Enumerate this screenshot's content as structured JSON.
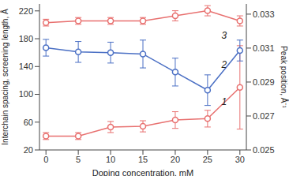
{
  "chart_data": {
    "type": "line",
    "x_label": "Doping concentration, mM",
    "y_label": "Interchain spacing, screening length, Å",
    "y2_label": "Peak position, Å⁻¹",
    "x": [
      0,
      5,
      10,
      15,
      20,
      25,
      30
    ],
    "xlim": [
      -1,
      31
    ],
    "xticks": [
      0,
      5,
      10,
      15,
      20,
      25,
      30
    ],
    "ylim": [
      20,
      230
    ],
    "yticks": [
      20,
      60,
      100,
      140,
      180,
      220
    ],
    "y2lim": [
      0.025,
      0.0336
    ],
    "y2ticks": [
      0.025,
      0.027,
      0.029,
      0.031,
      0.033
    ],
    "grid": false,
    "series": [
      {
        "name": "1",
        "color": "#e8706f",
        "marker": "circle",
        "values": [
          40,
          40,
          53,
          54,
          63,
          65,
          110
        ],
        "errors": [
          5,
          5,
          8,
          8,
          12,
          12,
          60
        ]
      },
      {
        "name": "2",
        "color": "#4a6fc4",
        "marker": "circle",
        "values": [
          167,
          161,
          160,
          158,
          132,
          106,
          163
        ],
        "errors": [
          12,
          15,
          15,
          20,
          20,
          22,
          15
        ]
      },
      {
        "name": "3",
        "color": "#e8706f",
        "marker": "circle",
        "axis": "y2",
        "values": [
          0.0325,
          0.0326,
          0.0326,
          0.0326,
          0.0329,
          0.0332,
          0.0326
        ],
        "errors": [
          0.0002,
          0.0002,
          0.0002,
          0.0002,
          0.0003,
          0.0003,
          0.0003
        ]
      }
    ]
  }
}
